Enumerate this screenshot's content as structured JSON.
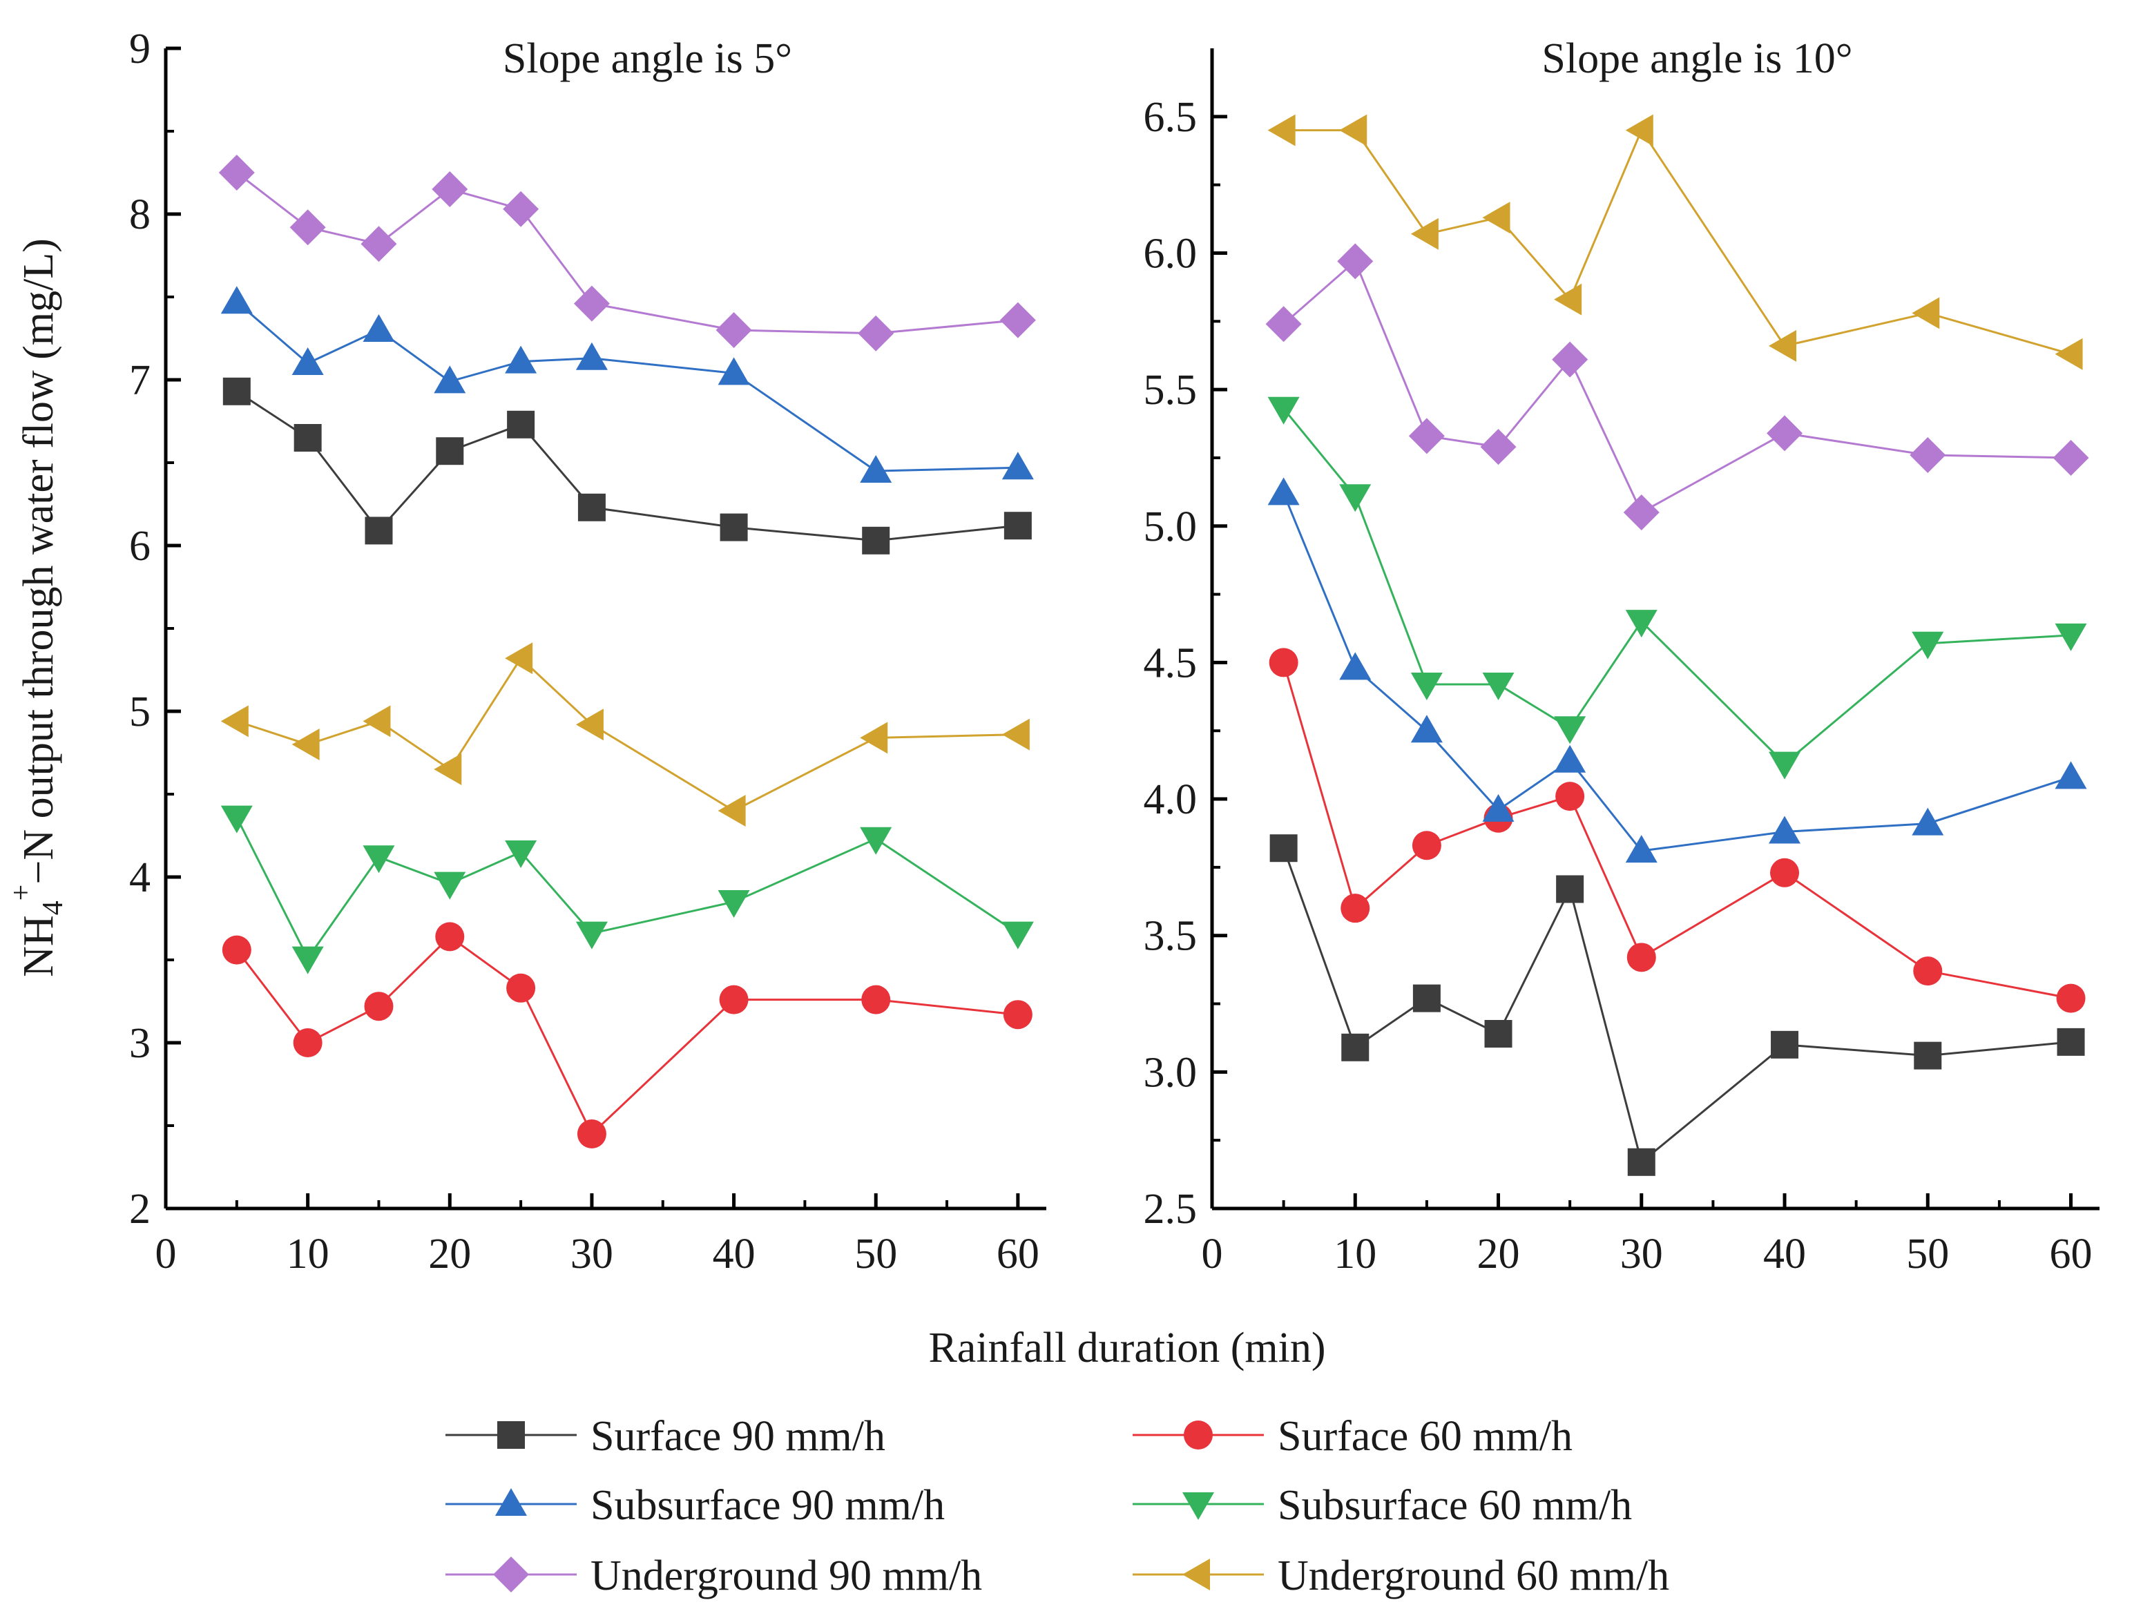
{
  "chart_data": [
    {
      "type": "line",
      "title": "Slope angle is 5°",
      "xlabel": "Rainfall duration (min)",
      "ylabel": "NH4+−N output through water flow (mg/L)",
      "xlim": [
        0,
        62
      ],
      "ylim": [
        2,
        9
      ],
      "x": [
        5,
        10,
        15,
        20,
        25,
        30,
        40,
        50,
        60
      ],
      "x_ticks": [
        "0",
        "10",
        "20",
        "30",
        "40",
        "50",
        "60"
      ],
      "y_ticks": [
        "2",
        "3",
        "4",
        "5",
        "6",
        "7",
        "8",
        "9"
      ],
      "series": [
        {
          "name": "Surface 90 mm/h",
          "values": [
            6.93,
            6.65,
            6.09,
            6.57,
            6.73,
            6.23,
            6.11,
            6.03,
            6.12
          ]
        },
        {
          "name": "Surface 60 mm/h",
          "values": [
            3.56,
            3.0,
            3.22,
            3.64,
            3.33,
            2.45,
            3.26,
            3.26,
            3.17
          ]
        },
        {
          "name": "Subsurface 90 mm/h",
          "values": [
            7.47,
            7.1,
            7.3,
            6.99,
            7.11,
            7.13,
            7.04,
            6.45,
            6.47
          ]
        },
        {
          "name": "Subsurface 60 mm/h",
          "values": [
            4.36,
            3.51,
            4.12,
            3.96,
            4.15,
            3.66,
            3.85,
            4.23,
            3.66
          ]
        },
        {
          "name": "Underground 90 mm/h",
          "values": [
            8.25,
            7.92,
            7.82,
            8.15,
            8.03,
            7.46,
            7.3,
            7.28,
            7.36
          ]
        },
        {
          "name": "Underground 60 mm/h",
          "values": [
            4.94,
            4.8,
            4.94,
            4.65,
            5.32,
            4.92,
            4.4,
            4.84,
            4.86
          ]
        }
      ]
    },
    {
      "type": "line",
      "title": "Slope angle is 10°",
      "xlabel": "Rainfall duration (min)",
      "ylabel": "NH4+−N output through water flow (mg/L)",
      "xlim": [
        0,
        62
      ],
      "ylim": [
        2.5,
        6.75
      ],
      "x": [
        5,
        10,
        15,
        20,
        25,
        30,
        40,
        50,
        60
      ],
      "x_ticks": [
        "0",
        "10",
        "20",
        "30",
        "40",
        "50",
        "60"
      ],
      "y_ticks": [
        "2.5",
        "3.0",
        "3.5",
        "4.0",
        "4.5",
        "5.0",
        "5.5",
        "6.0",
        "6.5"
      ],
      "series": [
        {
          "name": "Surface 90 mm/h",
          "values": [
            3.82,
            3.09,
            3.27,
            3.14,
            3.67,
            2.67,
            3.1,
            3.06,
            3.11
          ]
        },
        {
          "name": "Surface 60 mm/h",
          "values": [
            4.5,
            3.6,
            3.83,
            3.93,
            4.01,
            3.42,
            3.73,
            3.37,
            3.27
          ]
        },
        {
          "name": "Subsurface 90 mm/h",
          "values": [
            5.12,
            4.48,
            4.25,
            3.96,
            4.14,
            3.81,
            3.88,
            3.91,
            4.08
          ]
        },
        {
          "name": "Subsurface 60 mm/h",
          "values": [
            5.43,
            5.11,
            4.42,
            4.42,
            4.26,
            4.65,
            4.13,
            4.57,
            4.6
          ]
        },
        {
          "name": "Underground 90 mm/h",
          "values": [
            5.74,
            5.97,
            5.33,
            5.29,
            5.61,
            5.05,
            5.34,
            5.26,
            5.25
          ]
        },
        {
          "name": "Underground 60 mm/h",
          "values": [
            6.45,
            6.45,
            6.07,
            6.13,
            5.83,
            6.45,
            5.66,
            5.78,
            5.63
          ]
        }
      ]
    }
  ],
  "styles": [
    {
      "color": "#3d3d3d",
      "marker": "square"
    },
    {
      "color": "#e8333a",
      "marker": "circle"
    },
    {
      "color": "#2f6fc4",
      "marker": "triangle-up"
    },
    {
      "color": "#35b35c",
      "marker": "triangle-down"
    },
    {
      "color": "#b47ad2",
      "marker": "diamond"
    },
    {
      "color": "#d1a32e",
      "marker": "triangle-left"
    }
  ],
  "axis_text": {
    "xlabel": "Rainfall duration (min)",
    "ylabel_prefix": "NH",
    "ylabel_sub": "4",
    "ylabel_sup": "+",
    "ylabel_rest": "−N output through water flow (mg/L)"
  },
  "legend": {
    "items": [
      "Surface 90 mm/h",
      "Surface 60 mm/h",
      "Subsurface 90 mm/h",
      "Subsurface 60 mm/h",
      "Underground 90 mm/h",
      "Underground 60 mm/h"
    ]
  }
}
